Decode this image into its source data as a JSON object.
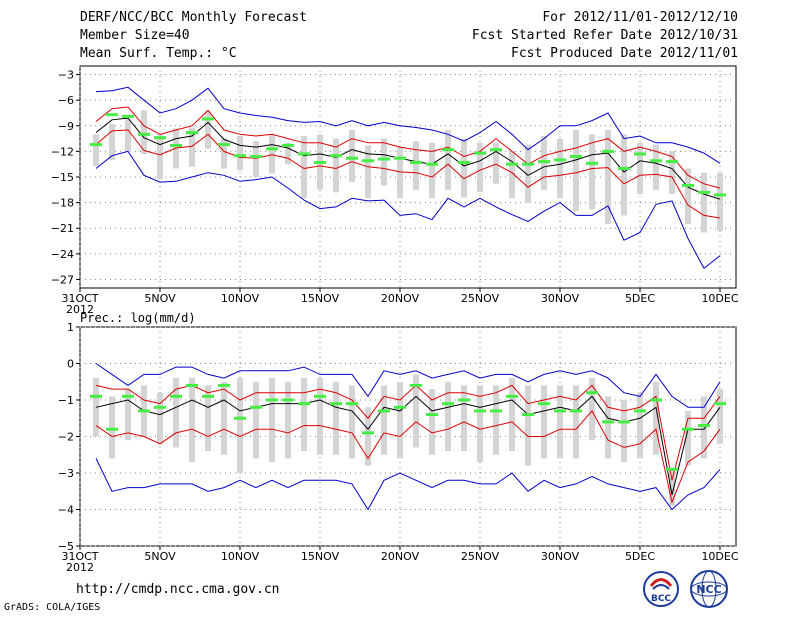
{
  "header": {
    "title": "DERF/NCC/BCC Monthly Forecast",
    "member_size": "Member Size=40",
    "variable": "Mean Surf. Temp.: °C",
    "period": "For 2012/11/01-2012/12/10",
    "fcst_started": "Fcst Started Refer Date 2012/10/31",
    "fcst_produced": "Fcst Produced Date 2012/11/01"
  },
  "footer": {
    "url": "http://cmdp.ncc.cma.gov.cn",
    "credit": "GrADS: COLA/IGES"
  },
  "logos": {
    "bcc": "BCC",
    "ncc": "NCC"
  },
  "colors": {
    "envelope": "#0000cc",
    "spread": "#dd0000",
    "mean": "#000000",
    "bar": "#d4d4d4",
    "marker": "#44ee44"
  },
  "chart_data": [
    {
      "type": "box-plume",
      "title": "Mean Surf. Temp.: °C",
      "ylabel": "°C",
      "ylim": [
        -28,
        -2
      ],
      "yticks": [
        -3,
        -6,
        -9,
        -12,
        -15,
        -18,
        -21,
        -24,
        -27
      ],
      "x_first_label": "31OCT",
      "year_label": "2012",
      "xtick_labels": [
        "5NOV",
        "10NOV",
        "15NOV",
        "20NOV",
        "25NOV",
        "30NOV",
        "5DEC",
        "10DEC"
      ],
      "xtick_days": [
        5,
        10,
        15,
        20,
        25,
        30,
        35,
        40
      ],
      "days": [
        1,
        2,
        3,
        4,
        5,
        6,
        7,
        8,
        9,
        10,
        11,
        12,
        13,
        14,
        15,
        16,
        17,
        18,
        19,
        20,
        21,
        22,
        23,
        24,
        25,
        26,
        27,
        28,
        29,
        30,
        31,
        32,
        33,
        34,
        35,
        36,
        37,
        38,
        39,
        40
      ],
      "series": [
        {
          "name": "max",
          "values": [
            -5,
            -4.9,
            -4.5,
            -6,
            -7.5,
            -7,
            -6,
            -4.6,
            -7,
            -7.5,
            -7.8,
            -8,
            -8.4,
            -8.6,
            -8.5,
            -9,
            -8.4,
            -9,
            -8.6,
            -9,
            -9.2,
            -9.5,
            -10,
            -10.8,
            -9.8,
            -8.5,
            -10,
            -11.8,
            -10.5,
            -9,
            -9,
            -8.4,
            -7.5,
            -10.5,
            -10.2,
            -11,
            -11,
            -11.5,
            -12.2,
            -13.4
          ]
        },
        {
          "name": "upper",
          "values": [
            -8.5,
            -7,
            -6.8,
            -9,
            -10,
            -9.5,
            -9,
            -7.2,
            -9.5,
            -10,
            -10.2,
            -10,
            -10.5,
            -11,
            -11,
            -11.5,
            -10.5,
            -11,
            -11,
            -11.5,
            -11.8,
            -12,
            -11.5,
            -12.6,
            -12,
            -10.5,
            -12,
            -13.5,
            -12.5,
            -12,
            -11.6,
            -11,
            -10.5,
            -12,
            -11.5,
            -12,
            -12.6,
            -14.8,
            -15.8,
            -16.3
          ]
        },
        {
          "name": "mean",
          "values": [
            -9.8,
            -8.3,
            -8.1,
            -10.4,
            -11.2,
            -10.5,
            -10.2,
            -8.6,
            -10.6,
            -11.3,
            -11.5,
            -11.2,
            -11.6,
            -12.5,
            -12.3,
            -12.7,
            -11.8,
            -12.3,
            -12.4,
            -12.8,
            -13.2,
            -13.5,
            -12.3,
            -13.7,
            -13.1,
            -12,
            -13.2,
            -14.8,
            -13.8,
            -13.5,
            -13,
            -12.4,
            -12.2,
            -14.4,
            -13.1,
            -13.4,
            -14,
            -16.2,
            -17,
            -17.6
          ]
        },
        {
          "name": "lower",
          "values": [
            -11.2,
            -9.6,
            -9.5,
            -11.9,
            -12.4,
            -11.6,
            -11.4,
            -10,
            -12,
            -12.7,
            -12.8,
            -12.4,
            -12.8,
            -14,
            -13.7,
            -14,
            -13.2,
            -13.8,
            -14,
            -14.4,
            -14.5,
            -15,
            -13.5,
            -15.2,
            -14.2,
            -13.5,
            -14.5,
            -16.2,
            -15,
            -14.8,
            -14.5,
            -14,
            -13.9,
            -15.8,
            -14.8,
            -14.7,
            -15,
            -18.3,
            -19.5,
            -19.8
          ]
        },
        {
          "name": "min",
          "values": [
            -14,
            -12.5,
            -12,
            -14.8,
            -15.6,
            -15.5,
            -15,
            -14.5,
            -14.8,
            -15.5,
            -15.3,
            -15,
            -16.3,
            -17.7,
            -18.7,
            -18.5,
            -17.5,
            -17.8,
            -17.7,
            -19.5,
            -19.3,
            -20,
            -17.5,
            -18.5,
            -17.5,
            -18.5,
            -19.4,
            -20.2,
            -19,
            -18,
            -19.5,
            -19.5,
            -18.4,
            -22.4,
            -21.5,
            -18.2,
            -17.8,
            -22.2,
            -25.7,
            -24.2
          ]
        }
      ],
      "box_high": [
        -10,
        -8.8,
        -8.2,
        -7.2,
        -10,
        -9.3,
        -9.2,
        -7.3,
        -10.5,
        -10.2,
        -10.8,
        -10,
        -11,
        -10.2,
        -10,
        -10.5,
        -9.5,
        -11.3,
        -10.5,
        -11.5,
        -10.8,
        -11,
        -9.5,
        -10.5,
        -11,
        -11,
        -12,
        -11.2,
        -10.2,
        -10.5,
        -9.5,
        -10,
        -9.5,
        -10,
        -11,
        -11.2,
        -12,
        -14,
        -14.5,
        -14.5
      ],
      "box_low": [
        -13.7,
        -13,
        -12,
        -12.3,
        -15.3,
        -14,
        -13.8,
        -11.7,
        -14,
        -14.2,
        -15,
        -14.6,
        -13.5,
        -17.5,
        -16.5,
        -16.8,
        -15.6,
        -17.5,
        -16,
        -17.5,
        -16.5,
        -17.5,
        -16.5,
        -17.4,
        -16.8,
        -15.8,
        -17.5,
        -18,
        -16.5,
        -17.5,
        -19,
        -18.8,
        -20.5,
        -19.5,
        -17,
        -16.5,
        -17,
        -20.5,
        -21.5,
        -21.3
      ],
      "markers": [
        -11.2,
        -7.7,
        -7.9,
        -10,
        -10.4,
        -11.3,
        -9.8,
        -8.2,
        -11.2,
        -12.5,
        -12.6,
        -11.7,
        -11.3,
        -12.3,
        -13.3,
        -12.5,
        -12.8,
        -13.1,
        -12.9,
        -12.8,
        -13.3,
        -13.5,
        -11.8,
        -13.3,
        -12.2,
        -11.8,
        -13.5,
        -13.5,
        -13.2,
        -13.0,
        -12.6,
        -13.4,
        -12.0,
        -14.0,
        -12.3,
        -13.1,
        -13.2,
        -16.0,
        -16.8,
        -17.1
      ]
    },
    {
      "type": "box-plume",
      "title": "Prec.: log(mm/d)",
      "ylabel": "log(mm/d)",
      "ylim": [
        -5,
        1
      ],
      "yticks": [
        1,
        0,
        -1,
        -2,
        -3,
        -4,
        -5
      ],
      "x_first_label": "31OCT",
      "year_label": "2012",
      "xtick_labels": [
        "5NOV",
        "10NOV",
        "15NOV",
        "20NOV",
        "25NOV",
        "30NOV",
        "5DEC",
        "10DEC"
      ],
      "xtick_days": [
        5,
        10,
        15,
        20,
        25,
        30,
        35,
        40
      ],
      "days": [
        1,
        2,
        3,
        4,
        5,
        6,
        7,
        8,
        9,
        10,
        11,
        12,
        13,
        14,
        15,
        16,
        17,
        18,
        19,
        20,
        21,
        22,
        23,
        24,
        25,
        26,
        27,
        28,
        29,
        30,
        31,
        32,
        33,
        34,
        35,
        36,
        37,
        38,
        39,
        40
      ],
      "series": [
        {
          "name": "max",
          "values": [
            0,
            -0.3,
            -0.6,
            -0.3,
            -0.3,
            -0.1,
            -0.1,
            -0.3,
            -0.4,
            -0.2,
            -0.2,
            -0.2,
            -0.2,
            -0.1,
            -0.3,
            -0.3,
            -0.3,
            -0.9,
            -0.2,
            -0.3,
            -0.2,
            -0.4,
            -0.3,
            -0.2,
            -0.4,
            -0.3,
            -0.3,
            -0.5,
            -0.3,
            -0.2,
            -0.3,
            -0.2,
            -0.4,
            -0.8,
            -0.9,
            -0.3,
            -0.9,
            -1.2,
            -1.2,
            -0.5
          ]
        },
        {
          "name": "upper",
          "values": [
            -0.6,
            -0.7,
            -0.7,
            -1.0,
            -1.1,
            -0.7,
            -0.6,
            -0.8,
            -0.7,
            -1.0,
            -0.8,
            -0.8,
            -0.8,
            -0.8,
            -0.7,
            -0.8,
            -1.0,
            -1.5,
            -0.9,
            -1.0,
            -0.6,
            -1.0,
            -0.8,
            -0.8,
            -0.9,
            -0.8,
            -0.6,
            -1.1,
            -1.0,
            -0.9,
            -1.0,
            -0.6,
            -1.2,
            -1.3,
            -1.2,
            -0.9,
            -3.2,
            -1.5,
            -1.5,
            -0.9
          ]
        },
        {
          "name": "mean",
          "values": [
            -1.2,
            -1.1,
            -1.0,
            -1.3,
            -1.4,
            -1.2,
            -1.0,
            -1.2,
            -1.0,
            -1.3,
            -1.2,
            -1.1,
            -1.1,
            -1.1,
            -1.0,
            -1.2,
            -1.3,
            -1.8,
            -1.2,
            -1.3,
            -0.9,
            -1.3,
            -1.2,
            -1.1,
            -1.2,
            -1.1,
            -1.0,
            -1.4,
            -1.3,
            -1.2,
            -1.3,
            -0.9,
            -1.5,
            -1.6,
            -1.5,
            -1.2,
            -3.6,
            -1.8,
            -1.8,
            -1.2
          ]
        },
        {
          "name": "lower",
          "values": [
            -1.7,
            -2.0,
            -1.9,
            -2.0,
            -2.2,
            -1.9,
            -1.8,
            -2.0,
            -1.8,
            -2.0,
            -1.8,
            -1.8,
            -1.9,
            -1.7,
            -1.7,
            -1.8,
            -1.9,
            -2.6,
            -1.9,
            -2.0,
            -1.6,
            -1.9,
            -1.8,
            -1.6,
            -1.8,
            -1.7,
            -1.6,
            -2.0,
            -2.0,
            -1.8,
            -1.8,
            -1.3,
            -2.1,
            -2.3,
            -2.2,
            -1.8,
            -3.8,
            -2.7,
            -2.4,
            -1.8
          ]
        },
        {
          "name": "min",
          "values": [
            -2.6,
            -3.5,
            -3.4,
            -3.4,
            -3.3,
            -3.3,
            -3.3,
            -3.5,
            -3.4,
            -3.2,
            -3.4,
            -3.2,
            -3.4,
            -3.2,
            -3.2,
            -3.2,
            -3.3,
            -4.0,
            -3.2,
            -3.0,
            -3.2,
            -3.4,
            -3.2,
            -3.2,
            -3.3,
            -3.3,
            -3.0,
            -3.5,
            -3.2,
            -3.4,
            -3.3,
            -3.1,
            -3.3,
            -3.4,
            -3.5,
            -3.4,
            -4.0,
            -3.6,
            -3.4,
            -2.9
          ]
        },
        {
          "name": "box_high",
          "values": [
            -0.4,
            -0.9,
            -0.7,
            -0.6,
            -0.8,
            -0.4,
            -0.4,
            -0.6,
            -0.5,
            -0.4,
            -0.5,
            -0.4,
            -0.5,
            -0.4,
            -0.4,
            -0.5,
            -0.6,
            -1.2,
            -0.6,
            -0.5,
            -0.3,
            -0.7,
            -0.5,
            -0.6,
            -0.6,
            -0.6,
            -0.4,
            -0.6,
            -0.6,
            -0.6,
            -0.6,
            -0.4,
            -0.9,
            -1.0,
            -0.8,
            -0.5,
            -2.9,
            -1.3,
            -0.9,
            -0.7
          ]
        },
        {
          "name": "box_low",
          "values": [
            -2.0,
            -2.6,
            -2.1,
            -2.0,
            -2.2,
            -2.3,
            -2.7,
            -2.4,
            -2.5,
            -3.0,
            -2.6,
            -2.7,
            -2.6,
            -2.4,
            -2.5,
            -2.5,
            -2.6,
            -2.8,
            -2.5,
            -2.6,
            -2.3,
            -2.5,
            -2.4,
            -2.4,
            -2.7,
            -2.5,
            -2.4,
            -2.8,
            -2.6,
            -2.6,
            -2.6,
            -2.1,
            -2.6,
            -2.7,
            -2.6,
            -2.5,
            -3.9,
            -2.8,
            -2.6,
            -2.2
          ]
        },
        {
          "name": "markers",
          "values": [
            -0.9,
            -1.8,
            -0.9,
            -1.3,
            -1.2,
            -0.9,
            -0.6,
            -0.9,
            -0.6,
            -1.5,
            -1.2,
            -1.0,
            -1.0,
            -1.1,
            -0.9,
            -1.1,
            -1.1,
            -1.9,
            -1.3,
            -1.2,
            -0.6,
            -1.4,
            -1.1,
            -1.0,
            -1.3,
            -1.3,
            -0.9,
            -1.4,
            -1.1,
            -1.3,
            -1.3,
            -0.8,
            -1.6,
            -1.6,
            -1.3,
            -1.0,
            -2.9,
            -1.8,
            -1.7,
            -1.1
          ]
        }
      ]
    }
  ]
}
